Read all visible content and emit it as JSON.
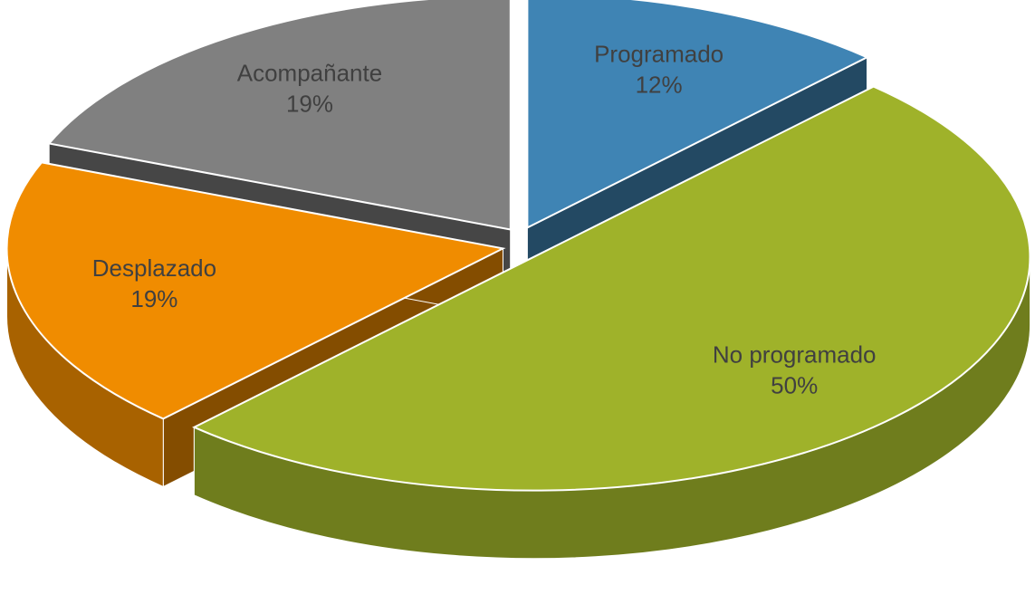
{
  "chart_data": {
    "type": "pie",
    "categories": [
      "Programado",
      "No programado",
      "Desplazado",
      "Acompañante"
    ],
    "values": [
      12,
      50,
      19,
      19
    ],
    "value_labels": [
      "12%",
      "50%",
      "19%",
      "19%"
    ],
    "colors": [
      "#3f84b4",
      "#9fb22a",
      "#f08c00",
      "#808080"
    ]
  }
}
